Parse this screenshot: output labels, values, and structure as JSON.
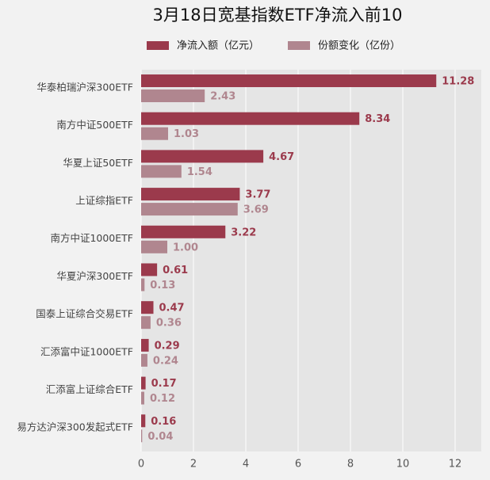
{
  "chart_data": {
    "type": "hbar",
    "title": "3月18日宽基指数ETF净流入前10",
    "categories": [
      "华泰柏瑞沪深300ETF",
      "南方中证500ETF",
      "华夏上证50ETF",
      "上证综指ETF",
      "南方中证1000ETF",
      "华夏沪深300ETF",
      "国泰上证综合交易ETF",
      "汇添富中证1000ETF",
      "汇添富上证综合ETF",
      "易方达沪深300发起式ETF"
    ],
    "series": [
      {
        "name": "净流入额（亿元）",
        "color": "#9b3a4c",
        "values": [
          11.28,
          8.34,
          4.67,
          3.77,
          3.22,
          0.61,
          0.47,
          0.29,
          0.17,
          0.16
        ],
        "value_labels": [
          "11.28",
          "8.34",
          "4.67",
          "3.77",
          "3.22",
          "0.61",
          "0.47",
          "0.29",
          "0.17",
          "0.16"
        ]
      },
      {
        "name": "份额变化（亿份）",
        "color": "#b0868f",
        "values": [
          2.43,
          1.03,
          1.54,
          3.69,
          1.0,
          0.13,
          0.36,
          0.24,
          0.12,
          0.04
        ],
        "value_labels": [
          "2.43",
          "1.03",
          "1.54",
          "3.69",
          "1.00",
          "0.13",
          "0.36",
          "0.24",
          "0.12",
          "0.04"
        ]
      }
    ],
    "xlim": [
      0,
      13
    ],
    "xticks": [
      0,
      2,
      4,
      6,
      8,
      10,
      12
    ],
    "grid": true
  }
}
